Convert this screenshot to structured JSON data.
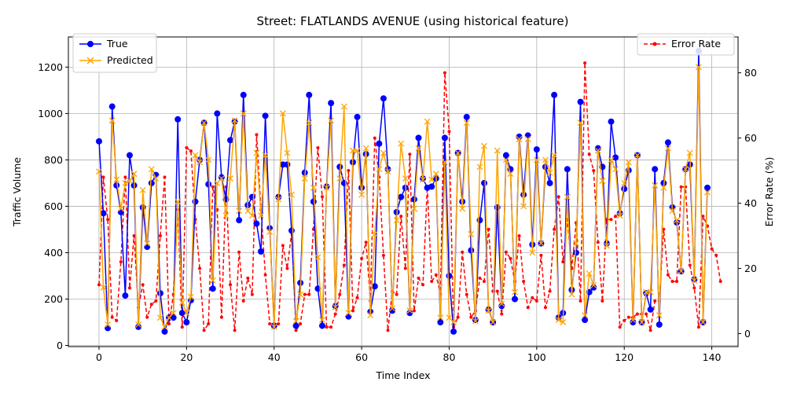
{
  "chart_data": {
    "type": "line",
    "title": "Street: FLATLANDS AVENUE (using historical feature)",
    "xlabel": "Time Index",
    "ylabel": "Traffic Volume",
    "y2label": "Error Rate (%)",
    "xlim": [
      -7,
      146
    ],
    "ylim": [
      -5,
      1330
    ],
    "y2lim": [
      -4,
      91
    ],
    "xticks": [
      0,
      20,
      40,
      60,
      80,
      100,
      120,
      140
    ],
    "yticks": [
      0,
      200,
      400,
      600,
      800,
      1000,
      1200
    ],
    "y2ticks": [
      0,
      20,
      40,
      60,
      80
    ],
    "grid": true,
    "legend_left": "upper-left",
    "legend_right": "upper-right",
    "series": [
      {
        "name": "True",
        "axis": "left",
        "color": "#0000ff",
        "marker": "circle",
        "linestyle": "solid",
        "values": [
          880,
          570,
          75,
          1030,
          690,
          575,
          215,
          820,
          690,
          80,
          595,
          425,
          700,
          735,
          225,
          60,
          120,
          120,
          975,
          140,
          100,
          195,
          620,
          800,
          960,
          695,
          245,
          1000,
          725,
          630,
          885,
          965,
          540,
          1080,
          605,
          640,
          525,
          405,
          990,
          505,
          85,
          640,
          780,
          780,
          495,
          85,
          270,
          745,
          1080,
          620,
          245,
          85,
          685,
          1045,
          170,
          770,
          700,
          125,
          790,
          985,
          680,
          825,
          145,
          255,
          870,
          1065,
          760,
          150,
          575,
          640,
          680,
          140,
          630,
          895,
          720,
          680,
          685,
          720,
          100,
          895,
          300,
          60,
          830,
          620,
          985,
          410,
          110,
          540,
          700,
          155,
          100,
          595,
          170,
          820,
          760,
          200,
          900,
          650,
          905,
          435,
          845,
          440,
          770,
          700,
          1080,
          120,
          140,
          760,
          240,
          400,
          1050,
          110,
          230,
          250,
          850,
          770,
          440,
          965,
          810,
          570,
          675,
          755,
          100,
          820,
          100,
          225,
          155,
          760,
          90,
          700,
          875,
          595,
          530,
          320,
          760,
          780,
          285,
          1270,
          100,
          680
        ]
      },
      {
        "name": "Predicted",
        "axis": "left",
        "color": "#ffa500",
        "marker": "x",
        "linestyle": "solid",
        "values": [
          750,
          250,
          90,
          970,
          715,
          590,
          700,
          710,
          740,
          90,
          670,
          440,
          760,
          720,
          120,
          80,
          120,
          140,
          620,
          185,
          140,
          210,
          820,
          790,
          960,
          800,
          280,
          700,
          720,
          560,
          720,
          970,
          580,
          1000,
          580,
          560,
          830,
          560,
          820,
          490,
          80,
          630,
          1000,
          830,
          650,
          105,
          220,
          720,
          960,
          680,
          380,
          110,
          680,
          970,
          165,
          720,
          1030,
          140,
          840,
          840,
          650,
          850,
          130,
          480,
          760,
          830,
          750,
          160,
          540,
          870,
          720,
          150,
          590,
          850,
          715,
          965,
          715,
          740,
          120,
          790,
          120,
          100,
          830,
          590,
          960,
          480,
          105,
          770,
          860,
          150,
          100,
          840,
          180,
          800,
          740,
          230,
          890,
          600,
          890,
          400,
          800,
          440,
          800,
          745,
          820,
          110,
          100,
          640,
          220,
          440,
          960,
          130,
          310,
          260,
          840,
          710,
          430,
          800,
          760,
          560,
          700,
          790,
          110,
          820,
          100,
          230,
          230,
          690,
          130,
          680,
          850,
          580,
          540,
          320,
          760,
          830,
          280,
          1200,
          100,
          660
        ]
      },
      {
        "name": "Error Rate",
        "axis": "right",
        "color": "#ff0000",
        "marker": "dot",
        "linestyle": "dashed",
        "values": [
          15,
          48,
          35,
          5,
          4,
          22,
          48,
          14,
          30,
          8,
          15,
          5,
          9,
          10,
          30,
          48,
          3,
          12,
          38,
          2,
          57,
          56,
          35,
          20,
          1,
          3,
          45,
          38,
          5,
          45,
          15,
          1,
          25,
          10,
          17,
          12,
          61,
          38,
          18,
          3,
          3,
          3,
          27,
          20,
          31,
          1,
          3,
          12,
          12,
          32,
          57,
          42,
          2,
          2,
          6,
          12,
          21,
          50,
          7,
          11,
          23,
          28,
          10,
          60,
          48,
          24,
          1,
          13,
          12,
          36,
          20,
          55,
          7,
          17,
          15,
          45,
          16,
          18,
          12,
          80,
          62,
          2,
          5,
          25,
          12,
          5,
          7,
          17,
          16,
          32,
          13,
          13,
          6,
          25,
          23,
          16,
          30,
          16,
          8,
          11,
          10,
          24,
          8,
          13,
          32,
          42,
          22,
          35,
          20,
          34,
          10,
          83,
          55,
          50,
          28,
          10,
          35,
          35,
          36,
          2,
          4,
          5,
          5,
          6,
          6,
          6,
          1,
          10,
          10,
          32,
          18,
          16,
          16,
          45,
          45,
          21,
          14,
          2,
          36,
          33,
          26,
          24,
          16
        ]
      }
    ]
  }
}
